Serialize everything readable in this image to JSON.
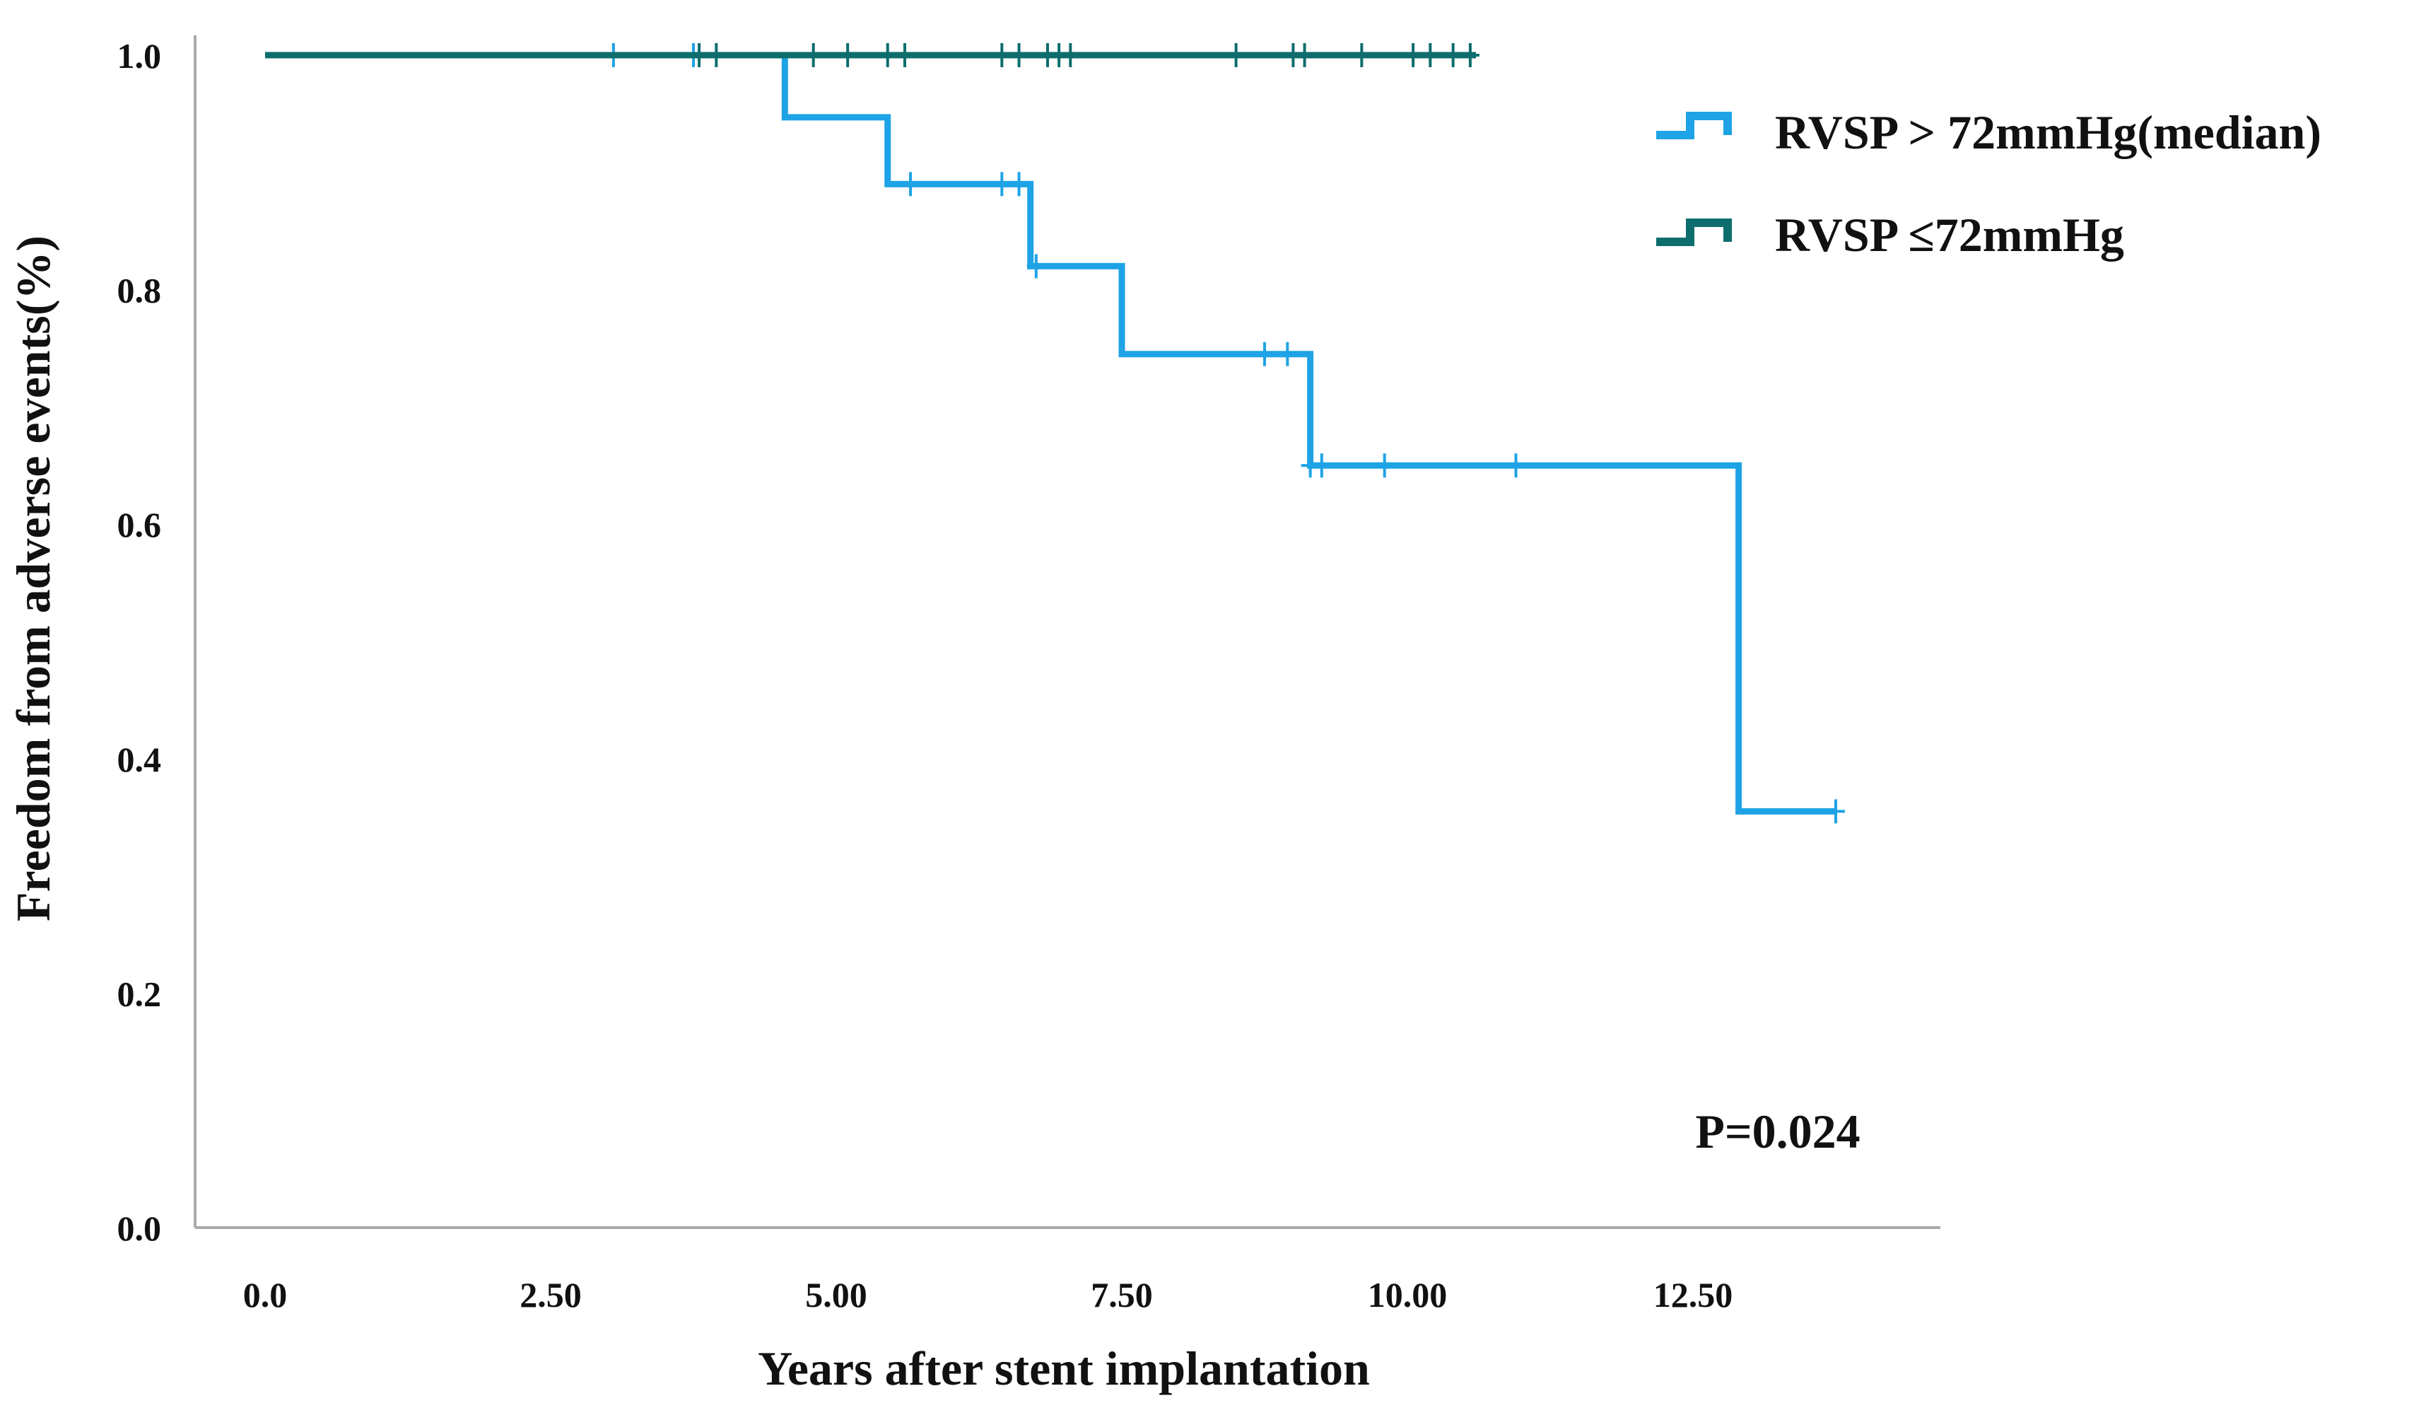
{
  "chart_data": {
    "type": "line",
    "subtype": "kaplan-meier",
    "title": "",
    "xlabel": "Years after stent implantation",
    "ylabel": "Freedom from adverse events(%)",
    "xlim": [
      0,
      14.5
    ],
    "ylim": [
      0,
      1.02
    ],
    "xticks": [
      0,
      2.5,
      5,
      7.5,
      10,
      12.5
    ],
    "xtick_labels": [
      "0.0",
      "2.50",
      "5.00",
      "7.50",
      "10.00",
      "12.50"
    ],
    "yticks": [
      0,
      0.2,
      0.4,
      0.6,
      0.8,
      1.0
    ],
    "ytick_labels": [
      "0.0",
      "0.2",
      "0.4",
      "0.6",
      "0.8",
      "1.0"
    ],
    "grid": false,
    "legend_position": "top-right",
    "annotation": "P=0.024",
    "series": [
      {
        "name": "RVSP > 72mmHg(median)",
        "color": "#1ea3e6",
        "steps": [
          [
            0.0,
            1.0
          ],
          [
            4.55,
            1.0
          ],
          [
            4.55,
            0.947
          ],
          [
            5.45,
            0.947
          ],
          [
            5.45,
            0.89
          ],
          [
            6.7,
            0.89
          ],
          [
            6.7,
            0.82
          ],
          [
            7.5,
            0.82
          ],
          [
            7.5,
            0.745
          ],
          [
            9.15,
            0.745
          ],
          [
            9.15,
            0.65
          ],
          [
            12.9,
            0.65
          ],
          [
            12.9,
            0.355
          ],
          [
            13.75,
            0.355
          ]
        ],
        "censored": [
          [
            3.05,
            1.0
          ],
          [
            3.75,
            1.0
          ],
          [
            5.65,
            0.89
          ],
          [
            6.45,
            0.89
          ],
          [
            6.6,
            0.89
          ],
          [
            6.75,
            0.82
          ],
          [
            8.75,
            0.745
          ],
          [
            8.95,
            0.745
          ],
          [
            9.15,
            0.65
          ],
          [
            9.25,
            0.65
          ],
          [
            9.8,
            0.65
          ],
          [
            10.95,
            0.65
          ],
          [
            13.75,
            0.355
          ]
        ]
      },
      {
        "name": "RVSP ≤72mmHg",
        "color": "#0d6d6d",
        "steps": [
          [
            0.0,
            1.0
          ],
          [
            10.6,
            1.0
          ]
        ],
        "censored": [
          [
            3.8,
            1.0
          ],
          [
            3.95,
            1.0
          ],
          [
            4.8,
            1.0
          ],
          [
            5.1,
            1.0
          ],
          [
            5.45,
            1.0
          ],
          [
            5.6,
            1.0
          ],
          [
            6.45,
            1.0
          ],
          [
            6.6,
            1.0
          ],
          [
            6.85,
            1.0
          ],
          [
            6.95,
            1.0
          ],
          [
            7.05,
            1.0
          ],
          [
            8.5,
            1.0
          ],
          [
            9.0,
            1.0
          ],
          [
            9.1,
            1.0
          ],
          [
            9.6,
            1.0
          ],
          [
            10.05,
            1.0
          ],
          [
            10.2,
            1.0
          ],
          [
            10.4,
            1.0
          ],
          [
            10.55,
            1.0
          ]
        ]
      }
    ]
  }
}
